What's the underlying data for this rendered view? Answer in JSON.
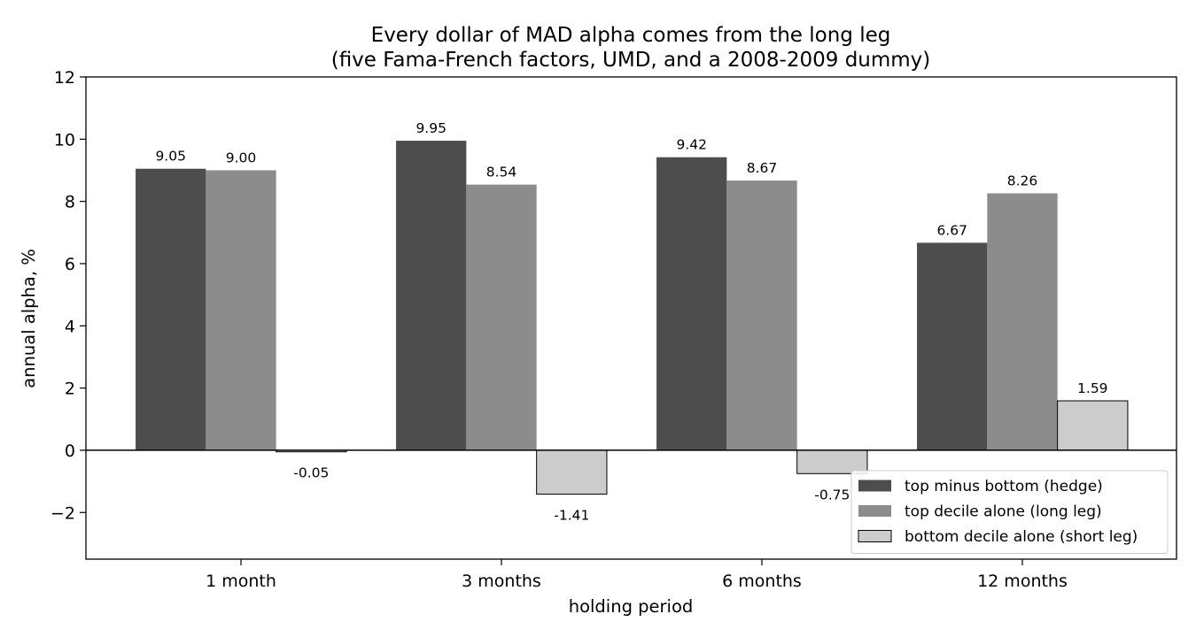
{
  "chart_data": {
    "type": "bar",
    "title": "Every dollar of MAD alpha comes from the long leg",
    "subtitle": "(five Fama-French factors, UMD, and a 2008-2009 dummy)",
    "xlabel": "holding period",
    "ylabel": "annual alpha, %",
    "categories": [
      "1 month",
      "3 months",
      "6 months",
      "12 months"
    ],
    "ylim": [
      -3.5,
      12
    ],
    "yticks": [
      -2,
      0,
      2,
      4,
      6,
      8,
      10,
      12
    ],
    "ytick_labels": [
      "−2",
      "0",
      "2",
      "4",
      "6",
      "8",
      "10",
      "12"
    ],
    "grid": false,
    "legend_position": "bottom-right",
    "series": [
      {
        "name": "top minus bottom (hedge)",
        "values": [
          9.05,
          9.95,
          9.42,
          6.67
        ],
        "labels": [
          "9.05",
          "9.95",
          "9.42",
          "6.67"
        ],
        "color": "#4d4d4d",
        "edge": "none"
      },
      {
        "name": "top decile alone (long leg)",
        "values": [
          9.0,
          8.54,
          8.67,
          8.26
        ],
        "labels": [
          "9.00",
          "8.54",
          "8.67",
          "8.26"
        ],
        "color": "#8c8c8c",
        "edge": "none"
      },
      {
        "name": "bottom decile alone (short leg)",
        "values": [
          -0.05,
          -1.41,
          -0.75,
          1.59
        ],
        "labels": [
          "-0.05",
          "-1.41",
          "-0.75",
          "1.59"
        ],
        "color": "#cccccc",
        "edge": "#000000"
      }
    ]
  }
}
